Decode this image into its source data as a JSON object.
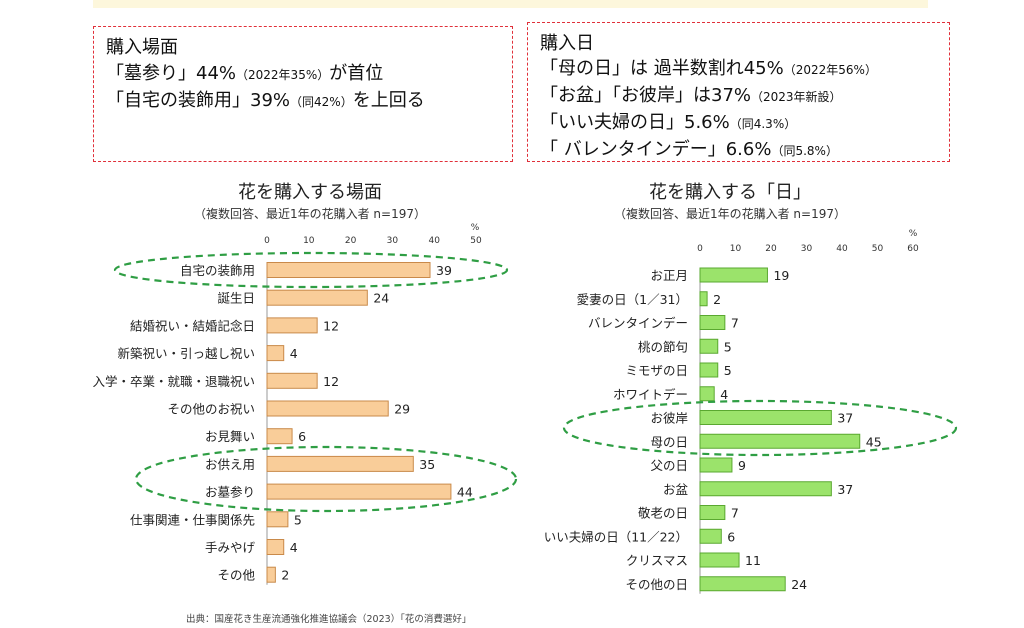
{
  "left_box": {
    "title": "購入場面",
    "line1_main": "「墓参り」44%",
    "line1_small": "（2022年35%）",
    "line1_tail": "が首位",
    "line2_main": "「自宅の装飾用」39%",
    "line2_small": "（同42%）",
    "line2_tail": "を上回る"
  },
  "right_box": {
    "title": "購入日",
    "line1_main": "「母の日」は 過半数割れ45%",
    "line1_small": "（2022年56%）",
    "line2_main": "「お盆」「お彼岸」は37%",
    "line2_small": "（2023年新設）",
    "line3_main": "「いい夫婦の日」5.6%",
    "line3_small": "（同4.3%）",
    "line4_main": "「 バレンタインデー」6.6%",
    "line4_small": "（同5.8%）"
  },
  "source": "出典：国産花き生産流通強化推進協議会（2023）「花の消費選好」",
  "colors": {
    "orange_bar": "#f9cd99",
    "orange_edge": "#c98a4a",
    "green_bar": "#9be36b",
    "green_edge": "#5aa830",
    "highlight": "#2f9e44",
    "box_border": "#e0303a"
  },
  "chart_data": [
    {
      "type": "bar",
      "orientation": "horizontal",
      "title": "花を購入する場面",
      "subtitle": "（複数回答、最近1年の花購入者 n=197）",
      "unit": "%",
      "xlim": [
        0,
        50
      ],
      "ticks": [
        0,
        10,
        20,
        30,
        40,
        50
      ],
      "categories": [
        "自宅の装飾用",
        "誕生日",
        "結婚祝い・結婚記念日",
        "新築祝い・引っ越し祝い",
        "入学・卒業・就職・退職祝い",
        "その他のお祝い",
        "お見舞い",
        "お供え用",
        "お墓参り",
        "仕事関連・仕事関係先",
        "手みやげ",
        "その他"
      ],
      "values": [
        39,
        24,
        12,
        4,
        12,
        29,
        6,
        35,
        44,
        5,
        4,
        2
      ],
      "highlighted": [
        "自宅の装飾用",
        "お供え用",
        "お墓参り"
      ]
    },
    {
      "type": "bar",
      "orientation": "horizontal",
      "title": "花を購入する「日」",
      "subtitle": "（複数回答、最近1年の花購入者 n=197）",
      "unit": "%",
      "xlim": [
        0,
        60
      ],
      "ticks": [
        0,
        10,
        20,
        30,
        40,
        50,
        60
      ],
      "categories": [
        "お正月",
        "愛妻の日（1／31）",
        "バレンタインデー",
        "桃の節句",
        "ミモザの日",
        "ホワイトデー",
        "お彼岸",
        "母の日",
        "父の日",
        "お盆",
        "敬老の日",
        "いい夫婦の日（11／22）",
        "クリスマス",
        "その他の日"
      ],
      "values": [
        19,
        2,
        7,
        5,
        5,
        4,
        37,
        45,
        9,
        37,
        7,
        6,
        11,
        24
      ],
      "highlighted": [
        "お彼岸",
        "母の日"
      ]
    }
  ]
}
